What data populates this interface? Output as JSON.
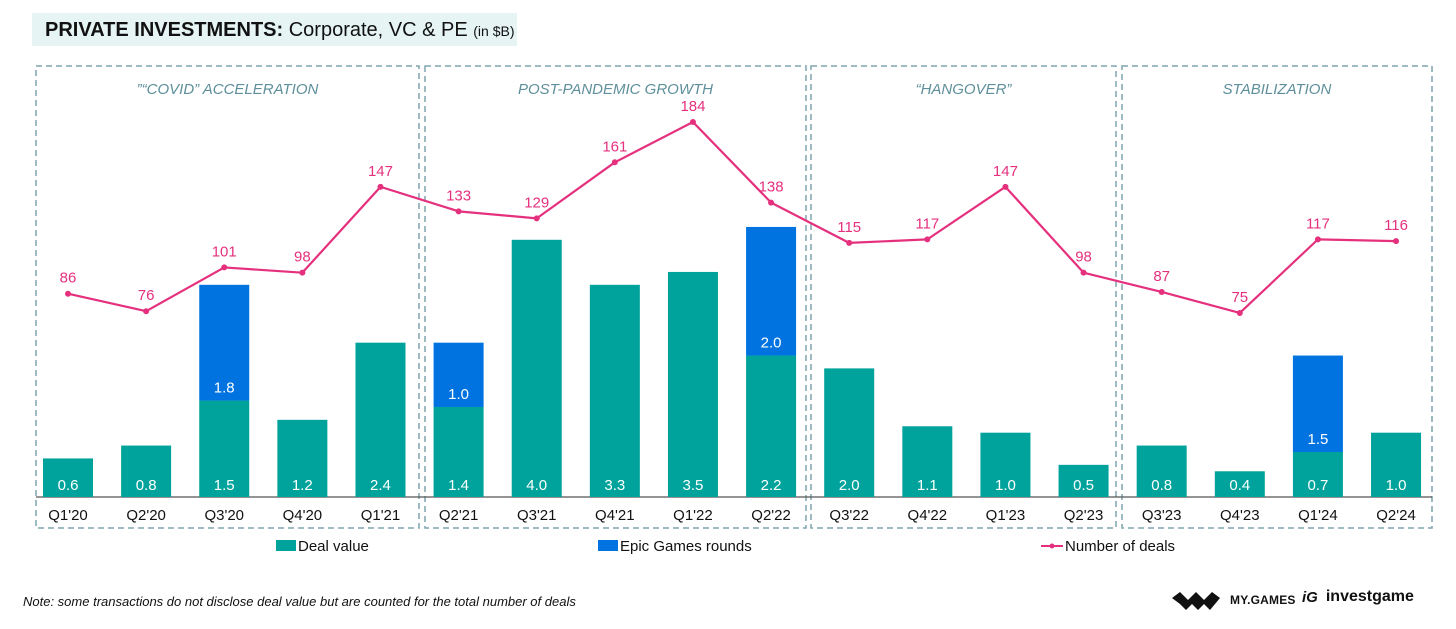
{
  "title": {
    "bold": "PRIVATE INVESTMENTS:",
    "normal": "Corporate, VC & PE",
    "unit": "(in $B)"
  },
  "note": "Note: some transactions do not disclose deal value but are counted for the total number of deals",
  "logos": {
    "mygames": "MY.GAMES",
    "investgame": "investgame",
    "investgame_mark": "iG"
  },
  "colors": {
    "deal_value": "#00a39b",
    "epic_games": "#0073e0",
    "number_of_deals": "#e5307e",
    "period_border": "#7fa4ae",
    "period_label": "#5e8f9a",
    "title_bg": "#e6f4f4"
  },
  "chart_data": {
    "type": "bar",
    "title": "PRIVATE INVESTMENTS: Corporate, VC & PE (in $B)",
    "xlabel": "",
    "ylabel": "",
    "grid": false,
    "legend_position": "bottom",
    "categories": [
      "Q1'20",
      "Q2'20",
      "Q3'20",
      "Q4'20",
      "Q1'21",
      "Q2'21",
      "Q3'21",
      "Q4'21",
      "Q1'22",
      "Q2'22",
      "Q3'22",
      "Q4'22",
      "Q1'23",
      "Q2'23",
      "Q3'23",
      "Q4'23",
      "Q1'24",
      "Q2'24"
    ],
    "series": [
      {
        "name": "Deal value",
        "type": "bar",
        "stack": "a",
        "values": [
          0.6,
          0.8,
          1.5,
          1.2,
          2.4,
          1.4,
          4.0,
          3.3,
          3.5,
          2.2,
          2.0,
          1.1,
          1.0,
          0.5,
          0.8,
          0.4,
          0.7,
          1.0
        ]
      },
      {
        "name": "Epic Games rounds",
        "type": "bar",
        "stack": "a",
        "values": [
          null,
          null,
          1.8,
          null,
          null,
          1.0,
          null,
          null,
          null,
          2.0,
          null,
          null,
          null,
          null,
          null,
          null,
          1.5,
          null
        ]
      },
      {
        "name": "Number of deals",
        "type": "line",
        "values": [
          86,
          76,
          101,
          98,
          147,
          133,
          129,
          161,
          184,
          138,
          115,
          117,
          147,
          98,
          87,
          75,
          117,
          116
        ]
      }
    ],
    "periods": [
      {
        "label": "”“COVID” ACCELERATION",
        "from": 0,
        "to": 4
      },
      {
        "label": "POST-PANDEMIC GROWTH",
        "from": 5,
        "to": 9
      },
      {
        "label": "“HANGOVER”",
        "from": 10,
        "to": 13
      },
      {
        "label": "STABILIZATION",
        "from": 14,
        "to": 17
      }
    ],
    "legend": [
      "Deal value",
      "Epic Games rounds",
      "Number of deals"
    ]
  }
}
